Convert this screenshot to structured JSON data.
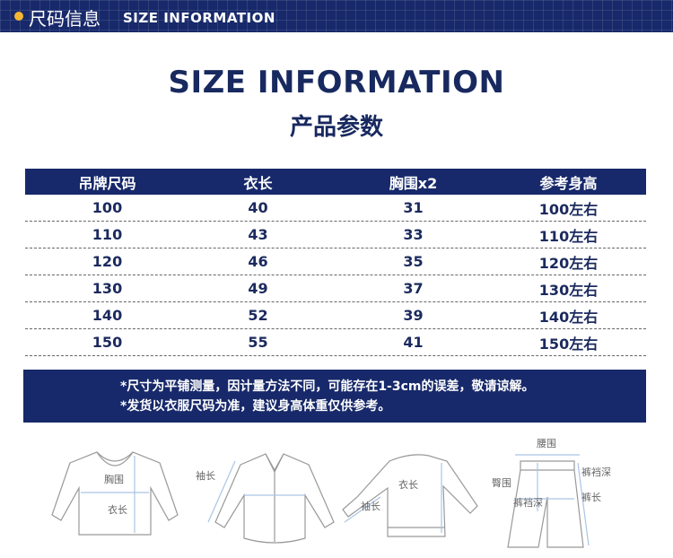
{
  "header": {
    "title_cn": "尺码信息",
    "title_en": "SIZE INFORMATION",
    "accent": "#f5b731",
    "navy": "#17296a"
  },
  "title": "SIZE INFORMATION",
  "subtitle": "产品参数",
  "table": {
    "columns": [
      "吊牌尺码",
      "衣长",
      "胸围x2",
      "参考身高"
    ],
    "rows": [
      [
        "100",
        "40",
        "31",
        "100左右"
      ],
      [
        "110",
        "43",
        "33",
        "110左右"
      ],
      [
        "120",
        "46",
        "35",
        "120左右"
      ],
      [
        "130",
        "49",
        "37",
        "130左右"
      ],
      [
        "140",
        "52",
        "39",
        "140左右"
      ],
      [
        "150",
        "55",
        "41",
        "150左右"
      ]
    ]
  },
  "notes": [
    "*尺寸为平铺测量，因计量方法不同，可能存在1-3cm的误差，敬请谅解。",
    "*发货以衣服尺码为准，建议身高体重仅供参考。"
  ],
  "diagrams": {
    "tshirt": [
      "胸围",
      "衣长"
    ],
    "shirt": [
      "袖长"
    ],
    "sweater": [
      "衣长",
      "袖长"
    ],
    "pants": [
      "腰围",
      "裤裆深",
      "臀围",
      "裤长",
      "裤裆深"
    ]
  }
}
